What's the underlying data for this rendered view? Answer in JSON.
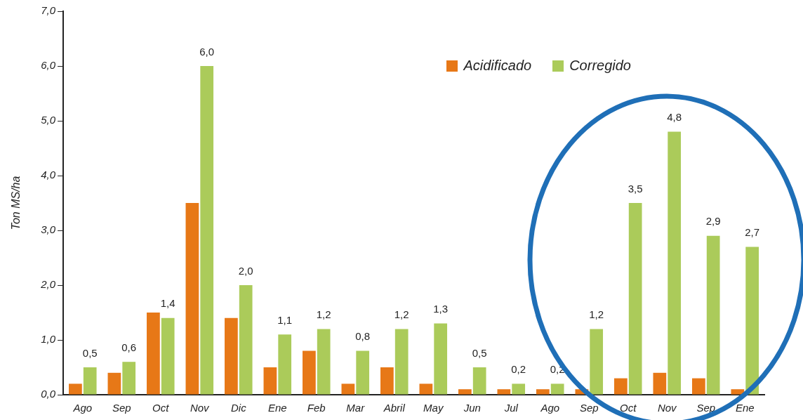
{
  "chart_data": {
    "type": "bar",
    "ylabel": "Ton MS/ha",
    "categories": [
      "Ago",
      "Sep",
      "Oct",
      "Nov",
      "Dic",
      "Ene",
      "Feb",
      "Mar",
      "Abril",
      "May",
      "Jun",
      "Jul",
      "Ago",
      "Sep",
      "Oct",
      "Nov",
      "Sep",
      "Ene"
    ],
    "series": [
      {
        "name": "Acidificado",
        "color": "#e77817",
        "values": [
          0.2,
          0.4,
          1.5,
          3.5,
          1.4,
          0.5,
          0.8,
          0.2,
          0.5,
          0.2,
          0.1,
          0.1,
          0.1,
          0.1,
          0.3,
          0.4,
          0.3,
          0.1
        ]
      },
      {
        "name": "Corregido",
        "color": "#abcb5a",
        "values": [
          0.5,
          0.6,
          1.4,
          6.0,
          2.0,
          1.1,
          1.2,
          0.8,
          1.2,
          1.3,
          0.5,
          0.2,
          0.2,
          1.2,
          3.5,
          4.8,
          2.9,
          2.7
        ],
        "value_labels": [
          "0,5",
          "0,6",
          "1,4",
          "6,0",
          "2,0",
          "1,1",
          "1,2",
          "0,8",
          "1,2",
          "1,3",
          "0,5",
          "0,2",
          "0,2",
          "1,2",
          "3,5",
          "4,8",
          "2,9",
          "2,7"
        ]
      }
    ],
    "ylim": [
      0,
      7
    ],
    "yticks": [
      {
        "value": 0,
        "label": "0,0"
      },
      {
        "value": 1,
        "label": "1,0"
      },
      {
        "value": 2,
        "label": "2,0"
      },
      {
        "value": 3,
        "label": "3,0"
      },
      {
        "value": 4,
        "label": "4,0"
      },
      {
        "value": 5,
        "label": "5,0"
      },
      {
        "value": 6,
        "label": "6,0"
      },
      {
        "value": 7,
        "label": "7,0"
      }
    ],
    "grid": false,
    "legend": "top right"
  }
}
